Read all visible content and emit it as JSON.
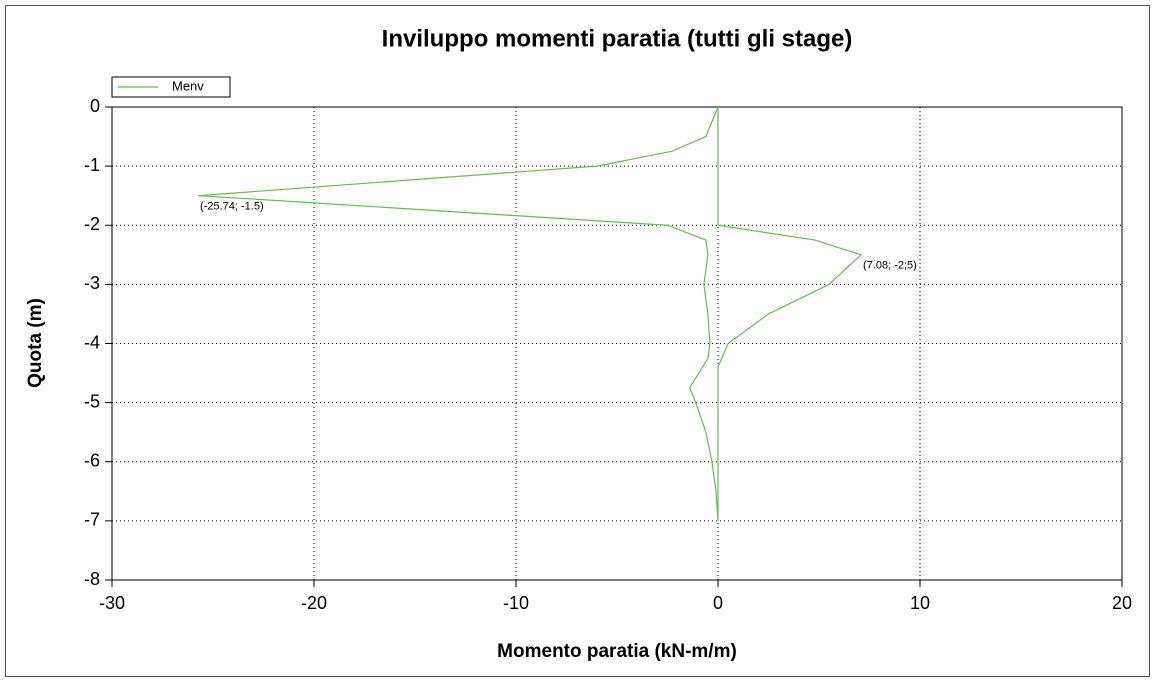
{
  "chart_data": {
    "type": "line",
    "title": "Inviluppo momenti paratia (tutti gli stage)",
    "xlabel": "Momento paratia (kN-m/m)",
    "ylabel": "Quota (m)",
    "xlim": [
      -30,
      20
    ],
    "xticks": [
      -30,
      -20,
      -10,
      0,
      10,
      20
    ],
    "ylim": [
      -8,
      0
    ],
    "yticks": [
      0,
      -1,
      -2,
      -3,
      -4,
      -5,
      -6,
      -7,
      -8
    ],
    "grid": true,
    "legend": "upper left",
    "series": [
      {
        "name": "Menv",
        "color": "#66bb55",
        "x": [
          0,
          -0.3,
          -0.6,
          -2.3,
          -6,
          -25.74,
          -21,
          -2.5,
          -0.6,
          -0.5,
          -0.7,
          -0.5,
          -0.4,
          -0.5,
          -1.4,
          -1.1,
          -0.6,
          -0.3,
          -0.1,
          0,
          null,
          0,
          0,
          4.8,
          7.08,
          5.5,
          2.5,
          0.5,
          0,
          0
        ],
        "values": [
          0,
          -0.25,
          -0.5,
          -0.75,
          -1,
          -1.5,
          -1.6,
          -2,
          -2.25,
          -2.5,
          -3,
          -3.5,
          -4,
          -4.25,
          -4.75,
          -5,
          -5.5,
          -6,
          -6.5,
          -7,
          null,
          0,
          -2,
          -2.25,
          -2.5,
          -3,
          -3.5,
          -4,
          -4.4,
          -7
        ]
      }
    ],
    "annotations": [
      {
        "text": "(-25.74; -1.5)",
        "x": -25.74,
        "y": -1.5
      },
      {
        "text": "(7.08; -2;5)",
        "x": 7.08,
        "y": -2.5
      }
    ]
  }
}
